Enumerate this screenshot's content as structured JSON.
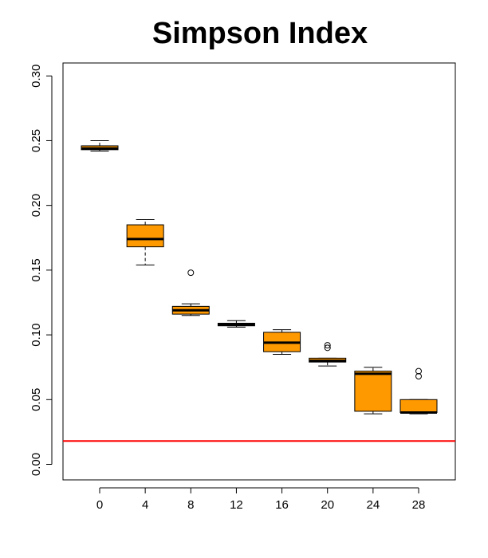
{
  "chart_data": {
    "type": "boxplot",
    "title": "Simpson Index",
    "xlabel": "",
    "ylabel": "",
    "ylim": [
      -0.012,
      0.31
    ],
    "yticks": [
      0.0,
      0.05,
      0.1,
      0.15,
      0.2,
      0.25,
      0.3
    ],
    "ytick_labels": [
      "0.00",
      "0.05",
      "0.10",
      "0.15",
      "0.20",
      "0.25",
      "0.30"
    ],
    "categories": [
      "0",
      "4",
      "8",
      "12",
      "16",
      "20",
      "24",
      "28"
    ],
    "boxes": [
      {
        "category": "0",
        "min": 0.242,
        "q1": 0.243,
        "median": 0.244,
        "q3": 0.246,
        "max": 0.25,
        "outliers": []
      },
      {
        "category": "4",
        "min": 0.154,
        "q1": 0.168,
        "median": 0.174,
        "q3": 0.185,
        "max": 0.189,
        "outliers": []
      },
      {
        "category": "8",
        "min": 0.115,
        "q1": 0.116,
        "median": 0.119,
        "q3": 0.122,
        "max": 0.124,
        "outliers": [
          0.148
        ]
      },
      {
        "category": "12",
        "min": 0.106,
        "q1": 0.107,
        "median": 0.108,
        "q3": 0.109,
        "max": 0.111,
        "outliers": []
      },
      {
        "category": "16",
        "min": 0.085,
        "q1": 0.087,
        "median": 0.094,
        "q3": 0.102,
        "max": 0.104,
        "outliers": []
      },
      {
        "category": "20",
        "min": 0.076,
        "q1": 0.079,
        "median": 0.08,
        "q3": 0.082,
        "max": 0.082,
        "outliers": [
          0.09,
          0.092
        ]
      },
      {
        "category": "24",
        "min": 0.039,
        "q1": 0.041,
        "median": 0.07,
        "q3": 0.072,
        "max": 0.075,
        "outliers": []
      },
      {
        "category": "28",
        "min": 0.039,
        "q1": 0.04,
        "median": 0.04,
        "q3": 0.05,
        "max": 0.05,
        "outliers": [
          0.068,
          0.072
        ]
      }
    ],
    "reference_line": {
      "y": 0.018,
      "color": "#ff0000"
    },
    "box_fill": "#ff9900",
    "grid": false,
    "legend": "none"
  }
}
